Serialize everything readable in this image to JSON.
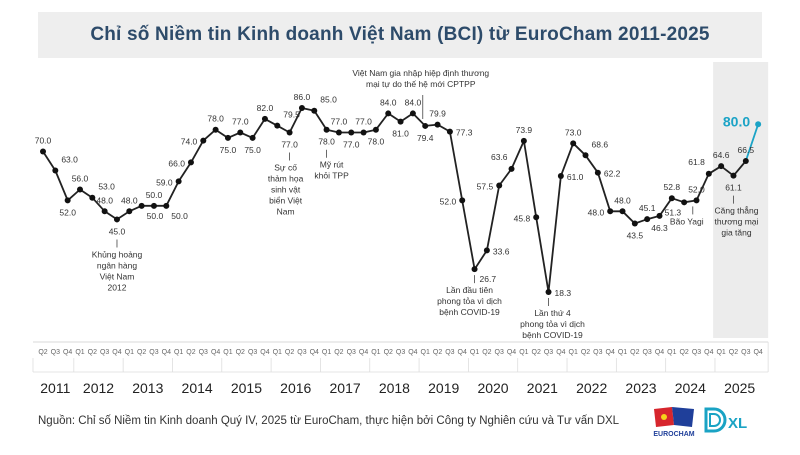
{
  "chart_data": {
    "type": "line",
    "title": "Chỉ số Niềm tin Kinh doanh Việt Nam (BCI) từ EuroCham 2011-2025",
    "xlabel": "",
    "ylabel": "",
    "grid": false,
    "years": [
      "2011",
      "2012",
      "2013",
      "2014",
      "2015",
      "2016",
      "2017",
      "2018",
      "2019",
      "2020",
      "2021",
      "2022",
      "2023",
      "2024",
      "2025"
    ],
    "quarters": [
      "Q2",
      "Q3",
      "Q4",
      "Q1",
      "Q2",
      "Q3",
      "Q4",
      "Q1",
      "Q2",
      "Q3",
      "Q4",
      "Q1",
      "Q2",
      "Q3",
      "Q4",
      "Q1",
      "Q2",
      "Q3",
      "Q4",
      "Q1",
      "Q2",
      "Q3",
      "Q4",
      "Q1",
      "Q2",
      "Q3",
      "Q4",
      "Q1",
      "Q2",
      "Q3",
      "Q4",
      "Q1",
      "Q2",
      "Q3",
      "Q4",
      "Q1",
      "Q2",
      "Q3",
      "Q4",
      "Q1",
      "Q2",
      "Q3",
      "Q4",
      "Q1",
      "Q2",
      "Q3",
      "Q4",
      "Q1",
      "Q2",
      "Q3",
      "Q4",
      "Q1",
      "Q2",
      "Q3",
      "Q4",
      "Q1",
      "Q2",
      "Q3",
      "Q4"
    ],
    "values": [
      70.0,
      63.0,
      52.0,
      56.0,
      53.0,
      48.0,
      45.0,
      48.0,
      50.0,
      50.0,
      50.0,
      59.0,
      66.0,
      74.0,
      78.0,
      75.0,
      77.0,
      75.0,
      82.0,
      79.5,
      77.0,
      86.0,
      85.0,
      78.0,
      77.0,
      77.0,
      77.0,
      78.0,
      84.0,
      81.0,
      84.0,
      79.4,
      79.9,
      77.3,
      52.0,
      26.7,
      33.6,
      57.5,
      63.6,
      73.9,
      45.8,
      18.3,
      61.0,
      73.0,
      68.6,
      62.2,
      48.0,
      48.0,
      43.5,
      45.1,
      46.3,
      52.8,
      51.3,
      52.0,
      61.8,
      64.6,
      61.1,
      66.5,
      80.0
    ],
    "labels": [
      "70.0",
      "63.0",
      "52.0",
      "56.0",
      "53.0",
      "48.0",
      "45.0",
      "48.0",
      "50.0",
      "50.0",
      "50.0",
      "59.0",
      "66.0",
      "74.0",
      "78.0",
      "75.0",
      "77.0",
      "75.0",
      "82.0",
      "79.5",
      "77.0",
      "86.0",
      "85.0",
      "78.0",
      "77.0",
      "77.0",
      "77.0",
      "78.0",
      "84.0",
      "81.0",
      "84.0",
      "79.4",
      "79.9",
      "77.3",
      "52.0",
      "26.7",
      "33.6",
      "57.5",
      "63.6",
      "73.9",
      "45.8",
      "18.3",
      "61.0",
      "73.0",
      "68.6",
      "62.2",
      "48.0",
      "48.0",
      "43.5",
      "45.1",
      "46.3",
      "52.8",
      "51.3",
      "52.0",
      "61.8",
      "64.6",
      "61.1",
      "66.5",
      "80.0"
    ],
    "highlight_year": "2025",
    "line_color": "#222222",
    "highlight_color": "#1ba3c6",
    "annotations": [
      {
        "index": 6,
        "side": "below",
        "text": [
          "Khủng hoảng",
          "ngân hàng",
          "Việt Nam",
          "2012"
        ]
      },
      {
        "index": 20,
        "side": "below",
        "text": [
          "Sự cố",
          "thảm họa",
          "sinh vật",
          "biển Việt",
          "Nam"
        ]
      },
      {
        "index": 23,
        "side": "below",
        "text": [
          "Mỹ rút",
          "khỏi TPP"
        ]
      },
      {
        "index": 31,
        "side": "above",
        "text": [
          "Việt Nam gia nhập hiệp định thương",
          "mại tự do thế hệ mới CPTPP"
        ]
      },
      {
        "index": 35,
        "side": "below",
        "text": [
          "Lần đầu tiên",
          "phong tỏa vì dịch",
          "bệnh COVID-19"
        ]
      },
      {
        "index": 41,
        "side": "below",
        "text": [
          "Lần thứ 4",
          "phong tỏa vì dịch",
          "bệnh COVID-19"
        ]
      },
      {
        "index": 53,
        "side": "below",
        "text": [
          "Bão Yagi"
        ]
      },
      {
        "index": 56,
        "side": "below",
        "text": [
          "Căng thẳng",
          "thương mại",
          "gia tăng"
        ]
      }
    ]
  },
  "footer": {
    "source": "Nguồn: Chỉ số Niềm tin Kinh doanh Quý IV, 2025 từ EuroCham, thực hiện bởi Công ty Nghiên cứu và Tư vấn DXL"
  },
  "logos": {
    "eurocham": "EUROCHAM",
    "dxl": "DXL"
  }
}
